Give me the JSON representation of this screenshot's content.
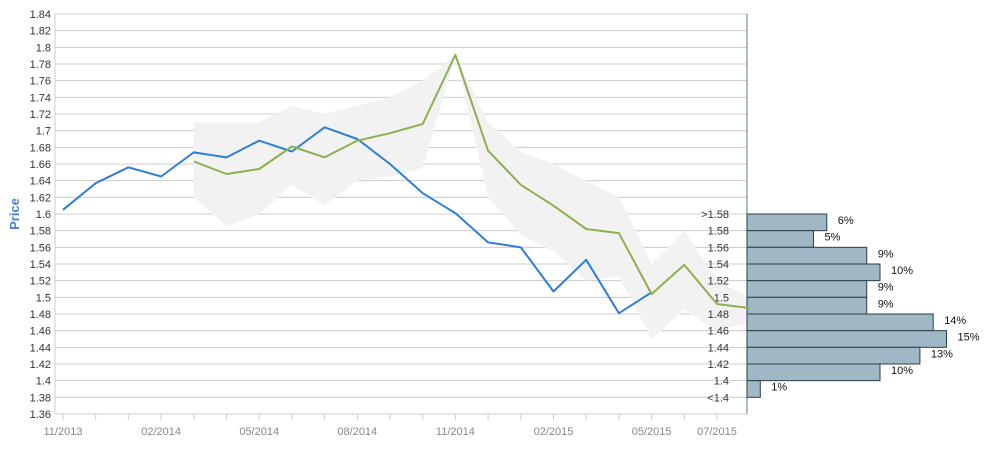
{
  "chart_data": [
    {
      "type": "line",
      "ylabel": "Price",
      "ylim": [
        1.36,
        1.84
      ],
      "y_ticks": [
        1.36,
        1.38,
        1.4,
        1.42,
        1.44,
        1.46,
        1.48,
        1.5,
        1.52,
        1.54,
        1.56,
        1.58,
        1.6,
        1.62,
        1.64,
        1.66,
        1.68,
        1.7,
        1.72,
        1.74,
        1.76,
        1.78,
        1.8,
        1.82,
        1.84
      ],
      "y_tick_labels": [
        "1.36",
        "1.38",
        "1.4",
        "1.42",
        "1.44",
        "1.46",
        "1.48",
        "1.5",
        "1.52",
        "1.54",
        "1.56",
        "1.58",
        "1.6",
        "1.62",
        "1.64",
        "1.66",
        "1.68",
        "1.7",
        "1.72",
        "1.74",
        "1.76",
        "1.78",
        "1.8",
        "1.82",
        "1.84"
      ],
      "x_tick_labels": [
        "11/2013",
        "02/2014",
        "05/2014",
        "08/2014",
        "11/2014",
        "02/2015",
        "05/2015",
        "07/2015"
      ],
      "x_tick_dates": [
        "2013-11",
        "2014-02",
        "2014-05",
        "2014-08",
        "2014-11",
        "2015-02",
        "2015-05",
        "2015-07"
      ],
      "grid": true,
      "series": [
        {
          "color": "#2f7fd6",
          "x": [
            "2013-11",
            "2013-12",
            "2014-01",
            "2014-02",
            "2014-03",
            "2014-04",
            "2014-05",
            "2014-06",
            "2014-07",
            "2014-08",
            "2014-09",
            "2014-10",
            "2014-11",
            "2014-12",
            "2015-01",
            "2015-02",
            "2015-03",
            "2015-04",
            "2015-05"
          ],
          "values": [
            1.605,
            1.637,
            1.656,
            1.645,
            1.674,
            1.668,
            1.688,
            1.675,
            1.704,
            1.69,
            1.66,
            1.625,
            1.601,
            1.566,
            1.56,
            1.507,
            1.545,
            1.481,
            1.506
          ]
        },
        {
          "color": "#8db04f",
          "x": [
            "2014-03",
            "2014-04",
            "2014-05",
            "2014-06",
            "2014-07",
            "2014-08",
            "2014-09",
            "2014-10",
            "2014-11",
            "2014-12",
            "2015-01",
            "2015-02",
            "2015-03",
            "2015-04",
            "2015-05",
            "2015-06",
            "2015-07",
            "2015-08"
          ],
          "values": [
            1.663,
            1.648,
            1.654,
            1.681,
            1.668,
            1.688,
            1.697,
            1.708,
            1.791,
            1.676,
            1.635,
            1.61,
            1.582,
            1.577,
            1.504,
            1.539,
            1.492,
            1.487
          ]
        }
      ],
      "band": {
        "color": "#f2f2f2",
        "x": [
          "2014-03",
          "2014-04",
          "2014-05",
          "2014-06",
          "2014-07",
          "2014-08",
          "2014-09",
          "2014-10",
          "2014-11",
          "2014-12",
          "2015-01",
          "2015-02",
          "2015-03",
          "2015-04",
          "2015-05",
          "2015-06",
          "2015-07",
          "2015-08"
        ],
        "upper": [
          1.71,
          1.71,
          1.71,
          1.73,
          1.72,
          1.73,
          1.74,
          1.76,
          1.791,
          1.71,
          1.675,
          1.66,
          1.64,
          1.62,
          1.54,
          1.58,
          1.52,
          1.5
        ],
        "lower": [
          1.62,
          1.585,
          1.6,
          1.635,
          1.61,
          1.64,
          1.645,
          1.655,
          1.791,
          1.62,
          1.575,
          1.555,
          1.52,
          1.525,
          1.45,
          1.485,
          1.46,
          1.47
        ]
      }
    },
    {
      "type": "bar",
      "orientation": "horizontal",
      "categories": [
        ">1.58",
        "1.58",
        "1.56",
        "1.54",
        "1.52",
        "1.5",
        "1.48",
        "1.46",
        "1.44",
        "1.42",
        "1.4",
        "<1.4"
      ],
      "values": [
        6,
        5,
        9,
        10,
        9,
        9,
        14,
        15,
        13,
        10,
        1,
        0
      ],
      "value_labels": [
        "6%",
        "5%",
        "9%",
        "10%",
        "9%",
        "9%",
        "14%",
        "15%",
        "13%",
        "10%",
        "1%",
        ""
      ],
      "color": "#a0b8c6"
    }
  ]
}
